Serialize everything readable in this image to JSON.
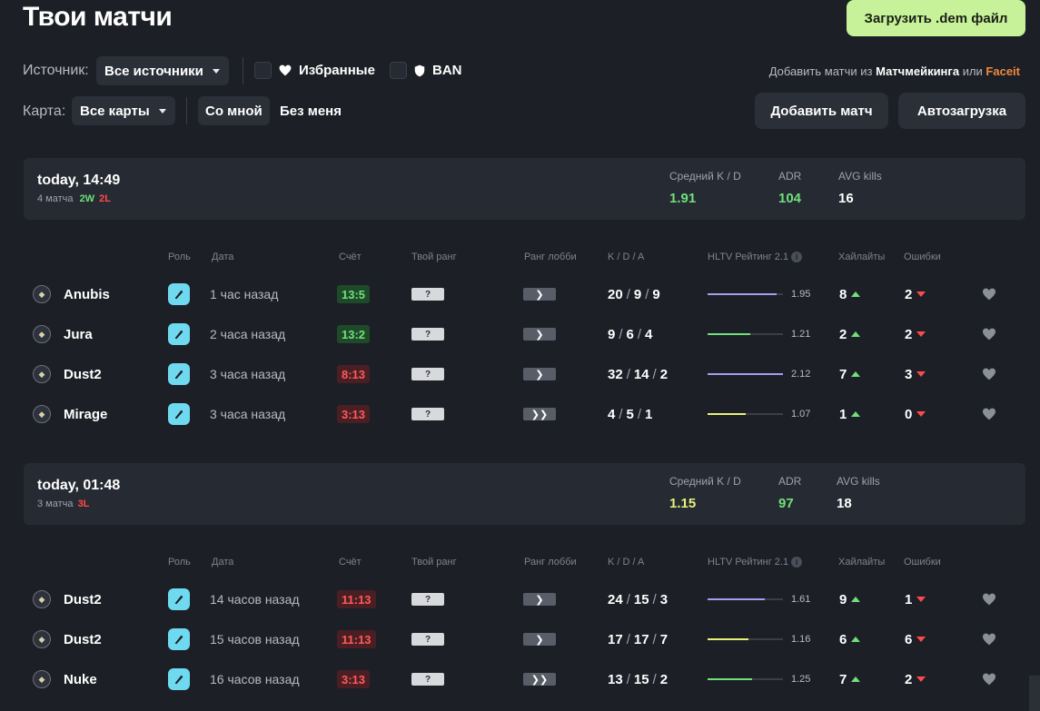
{
  "page": {
    "title": "Твои матчи",
    "upload_button": "Загрузить .dem файл"
  },
  "filters": {
    "source_label": "Источник:",
    "source_value": "Все источники",
    "favorites_label": "Избранные",
    "ban_label": "BAN",
    "map_label": "Карта:",
    "map_value": "Все карты",
    "with_me": "Со мной",
    "without_me": "Без меня"
  },
  "add_links": {
    "prefix": "Добавить матчи из",
    "mm": "Матчмейкинга",
    "or": "или",
    "faceit": "Faceit"
  },
  "actions": {
    "add_match": "Добавить матч",
    "autoload": "Автозагрузка"
  },
  "columns": {
    "role": "Роль",
    "date": "Дата",
    "score": "Счёт",
    "your_rank": "Твой ранг",
    "lobby_rank": "Ранг лобби",
    "kda": "K / D / A",
    "hltv": "HLTV Рейтинг 2.1",
    "highlights": "Хайлайты",
    "mistakes": "Ошибки"
  },
  "colors": {
    "win": "#6fe07a",
    "loss": "#ff4a4a",
    "accent": "#c8f29a",
    "bar_purple": "#a99cf0",
    "bar_green": "#6fe07a",
    "bar_yellow": "#e6f07a"
  },
  "groups": [
    {
      "date": "today, 14:49",
      "count": "4 матча",
      "wins": "2W",
      "losses": "2L",
      "stats": {
        "kd_label": "Средний K / D",
        "kd": "1.91",
        "kd_color": "#6fe07a",
        "adr_label": "ADR",
        "adr": "104",
        "adr_color": "#6fe07a",
        "avg_label": "AVG kills",
        "avg": "16"
      },
      "matches": [
        {
          "map": "Anubis",
          "map_icon": "anubis-map-icon",
          "date": "1 час назад",
          "score": "13:5",
          "result": "win",
          "rank": "?",
          "lobby": "❯",
          "k": "20",
          "d": "9",
          "a": "9",
          "rating": "1.95",
          "rating_value": 1.95,
          "bar_color": "#a99cf0",
          "highlights": "8",
          "mistakes": "2"
        },
        {
          "map": "Jura",
          "map_icon": "jura-map-icon",
          "date": "2 часа назад",
          "score": "13:2",
          "result": "win",
          "rank": "?",
          "lobby": "❯",
          "k": "9",
          "d": "6",
          "a": "4",
          "rating": "1.21",
          "rating_value": 1.21,
          "bar_color": "#6fe07a",
          "highlights": "2",
          "mistakes": "2"
        },
        {
          "map": "Dust2",
          "map_icon": "dust2-map-icon",
          "date": "3 часа назад",
          "score": "8:13",
          "result": "loss",
          "rank": "?",
          "lobby": "❯",
          "k": "32",
          "d": "14",
          "a": "2",
          "rating": "2.12",
          "rating_value": 2.12,
          "bar_color": "#a99cf0",
          "highlights": "7",
          "mistakes": "3"
        },
        {
          "map": "Mirage",
          "map_icon": "mirage-map-icon",
          "date": "3 часа назад",
          "score": "3:13",
          "result": "loss",
          "rank": "?",
          "lobby": "❯❯",
          "k": "4",
          "d": "5",
          "a": "1",
          "rating": "1.07",
          "rating_value": 1.07,
          "bar_color": "#e6f07a",
          "highlights": "1",
          "mistakes": "0"
        }
      ]
    },
    {
      "date": "today, 01:48",
      "count": "3 матча",
      "wins": "",
      "losses": "3L",
      "stats": {
        "kd_label": "Средний K / D",
        "kd": "1.15",
        "kd_color": "#e6f07a",
        "adr_label": "ADR",
        "adr": "97",
        "adr_color": "#6fe07a",
        "avg_label": "AVG kills",
        "avg": "18"
      },
      "matches": [
        {
          "map": "Dust2",
          "map_icon": "dust2-map-icon",
          "date": "14 часов назад",
          "score": "11:13",
          "result": "loss",
          "rank": "?",
          "lobby": "❯",
          "k": "24",
          "d": "15",
          "a": "3",
          "rating": "1.61",
          "rating_value": 1.61,
          "bar_color": "#a99cf0",
          "highlights": "9",
          "mistakes": "1"
        },
        {
          "map": "Dust2",
          "map_icon": "dust2-map-icon",
          "date": "15 часов назад",
          "score": "11:13",
          "result": "loss",
          "rank": "?",
          "lobby": "❯",
          "k": "17",
          "d": "17",
          "a": "7",
          "rating": "1.16",
          "rating_value": 1.16,
          "bar_color": "#e6f07a",
          "highlights": "6",
          "mistakes": "6"
        },
        {
          "map": "Nuke",
          "map_icon": "nuke-map-icon",
          "date": "16 часов назад",
          "score": "3:13",
          "result": "loss",
          "rank": "?",
          "lobby": "❯❯",
          "k": "13",
          "d": "15",
          "a": "2",
          "rating": "1.25",
          "rating_value": 1.25,
          "bar_color": "#6fe07a",
          "highlights": "7",
          "mistakes": "2"
        }
      ]
    }
  ]
}
